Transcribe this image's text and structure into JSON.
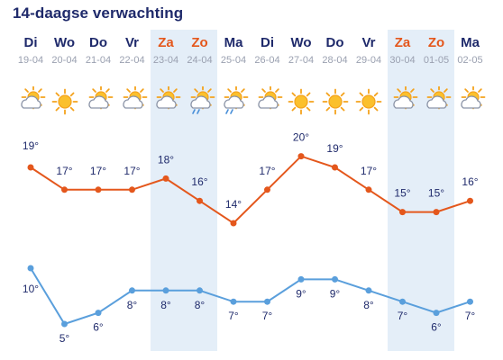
{
  "title": "14-daagse verwachting",
  "colors": {
    "max_line": "#e4571c",
    "min_line": "#5a9fdc",
    "weekend_band": "#e4eef8",
    "weekday_text": "#1f2a6b",
    "weekend_text": "#e4571c",
    "date_text": "#9aa0b0"
  },
  "days": [
    {
      "name": "Di",
      "date": "19-04",
      "weekend": false,
      "icon": "partly-cloudy-icon"
    },
    {
      "name": "Wo",
      "date": "20-04",
      "weekend": false,
      "icon": "sun-icon"
    },
    {
      "name": "Do",
      "date": "21-04",
      "weekend": false,
      "icon": "partly-cloudy-icon"
    },
    {
      "name": "Vr",
      "date": "22-04",
      "weekend": false,
      "icon": "partly-cloudy-icon"
    },
    {
      "name": "Za",
      "date": "23-04",
      "weekend": true,
      "icon": "partly-cloudy-icon"
    },
    {
      "name": "Zo",
      "date": "24-04",
      "weekend": true,
      "icon": "sun-rain-icon"
    },
    {
      "name": "Ma",
      "date": "25-04",
      "weekend": false,
      "icon": "sun-rain-icon"
    },
    {
      "name": "Di",
      "date": "26-04",
      "weekend": false,
      "icon": "partly-cloudy-icon"
    },
    {
      "name": "Wo",
      "date": "27-04",
      "weekend": false,
      "icon": "sun-icon"
    },
    {
      "name": "Do",
      "date": "28-04",
      "weekend": false,
      "icon": "sun-icon"
    },
    {
      "name": "Vr",
      "date": "29-04",
      "weekend": false,
      "icon": "sun-icon"
    },
    {
      "name": "Za",
      "date": "30-04",
      "weekend": true,
      "icon": "partly-cloudy-icon"
    },
    {
      "name": "Zo",
      "date": "01-05",
      "weekend": true,
      "icon": "partly-cloudy-icon"
    },
    {
      "name": "Ma",
      "date": "02-05",
      "weekend": false,
      "icon": "partly-cloudy-icon"
    }
  ],
  "chart_data": {
    "type": "line",
    "categories": [
      "19-04",
      "20-04",
      "21-04",
      "22-04",
      "23-04",
      "24-04",
      "25-04",
      "26-04",
      "27-04",
      "28-04",
      "29-04",
      "30-04",
      "01-05",
      "02-05"
    ],
    "series": [
      {
        "values": [
          19,
          17,
          17,
          17,
          18,
          16,
          14,
          17,
          20,
          19,
          17,
          15,
          15,
          16
        ]
      },
      {
        "values": [
          10,
          5,
          6,
          8,
          8,
          8,
          7,
          7,
          9,
          9,
          8,
          7,
          6,
          7
        ]
      }
    ],
    "unit": "°",
    "grid": false
  }
}
